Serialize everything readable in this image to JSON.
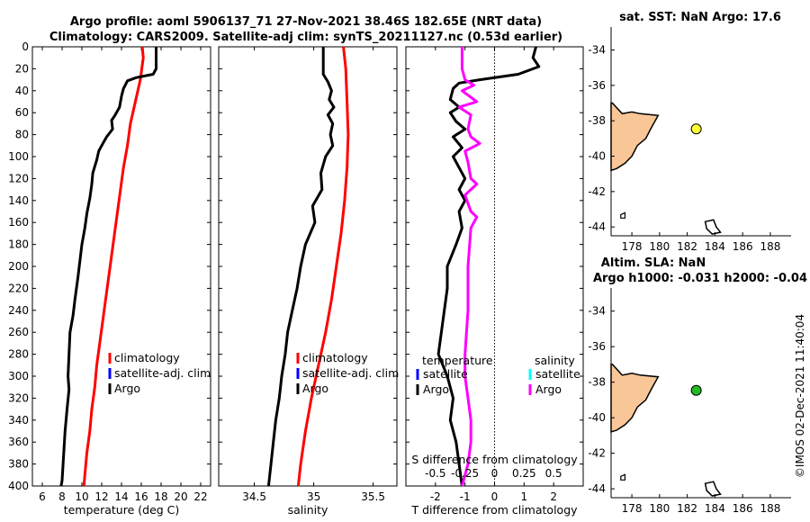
{
  "titles": {
    "line1": "Argo profile: aoml 5906137_71 27-Nov-2021 38.46S 182.65E (NRT data)",
    "line2": "Climatology: CARS2009. Satellite-adj clim: synTS_20211127.nc (0.53d earlier)"
  },
  "footer": "©IMOS 02-Dec-2021 11:40:04",
  "colors": {
    "climatology": "#ff0000",
    "satellite": "#0000ff",
    "argo": "#000000",
    "sal_sat": "#00ffff",
    "sal_argo": "#ff00ff",
    "land": "#f9c797",
    "sst_dot": "#ffff33",
    "sla_dot": "#22bb22"
  },
  "chart_data": [
    {
      "id": "temperature",
      "type": "line",
      "xlabel": "temperature (deg C)",
      "ylim": [
        0,
        400
      ],
      "xlim": [
        5,
        23
      ],
      "xticks": [
        6,
        8,
        10,
        12,
        14,
        16,
        18,
        20,
        22
      ],
      "yticks": [
        0,
        20,
        40,
        60,
        80,
        100,
        120,
        140,
        160,
        180,
        200,
        220,
        240,
        260,
        280,
        300,
        320,
        340,
        360,
        380,
        400
      ],
      "legend": [
        "climatology",
        "satellite-adj. clim",
        "Argo"
      ],
      "series": [
        {
          "name": "climatology",
          "color": "#ff0000",
          "points": [
            [
              16.1,
              0
            ],
            [
              16.2,
              10
            ],
            [
              15.9,
              30
            ],
            [
              15.4,
              50
            ],
            [
              14.9,
              70
            ],
            [
              14.6,
              90
            ],
            [
              14.2,
              110
            ],
            [
              13.9,
              130
            ],
            [
              13.6,
              150
            ],
            [
              13.3,
              170
            ],
            [
              13.0,
              190
            ],
            [
              12.7,
              210
            ],
            [
              12.4,
              230
            ],
            [
              12.1,
              250
            ],
            [
              11.8,
              270
            ],
            [
              11.5,
              290
            ],
            [
              11.3,
              310
            ],
            [
              11.0,
              330
            ],
            [
              10.8,
              350
            ],
            [
              10.5,
              370
            ],
            [
              10.3,
              390
            ],
            [
              10.2,
              400
            ]
          ]
        },
        {
          "name": "Argo",
          "color": "#000000",
          "points": [
            [
              17.5,
              0
            ],
            [
              17.5,
              20
            ],
            [
              17.2,
              25
            ],
            [
              15.5,
              28
            ],
            [
              14.6,
              31
            ],
            [
              14.2,
              38
            ],
            [
              14.0,
              45
            ],
            [
              13.8,
              55
            ],
            [
              13.3,
              63
            ],
            [
              13.0,
              67
            ],
            [
              13.1,
              75
            ],
            [
              12.5,
              82
            ],
            [
              12.0,
              90
            ],
            [
              11.7,
              95
            ],
            [
              11.5,
              103
            ],
            [
              11.1,
              115
            ],
            [
              11.0,
              125
            ],
            [
              10.8,
              138
            ],
            [
              10.5,
              152
            ],
            [
              10.3,
              165
            ],
            [
              10.0,
              180
            ],
            [
              9.8,
              195
            ],
            [
              9.6,
              210
            ],
            [
              9.3,
              230
            ],
            [
              9.1,
              245
            ],
            [
              8.8,
              260
            ],
            [
              8.7,
              280
            ],
            [
              8.6,
              300
            ],
            [
              8.7,
              312
            ],
            [
              8.5,
              330
            ],
            [
              8.3,
              350
            ],
            [
              8.2,
              365
            ],
            [
              8.1,
              380
            ],
            [
              8.0,
              395
            ],
            [
              7.9,
              400
            ]
          ]
        }
      ]
    },
    {
      "id": "salinity",
      "type": "line",
      "xlabel": "salinity",
      "ylim": [
        0,
        400
      ],
      "xlim": [
        34.2,
        35.7
      ],
      "xticks": [
        34.5,
        35,
        35.5
      ],
      "legend": [
        "climatology",
        "satellite-adj. clim",
        "Argo"
      ],
      "series": [
        {
          "name": "climatology",
          "color": "#ff0000",
          "points": [
            [
              35.25,
              0
            ],
            [
              35.27,
              20
            ],
            [
              35.28,
              50
            ],
            [
              35.29,
              80
            ],
            [
              35.28,
              110
            ],
            [
              35.26,
              140
            ],
            [
              35.23,
              170
            ],
            [
              35.19,
              200
            ],
            [
              35.15,
              230
            ],
            [
              35.1,
              260
            ],
            [
              35.04,
              290
            ],
            [
              34.98,
              320
            ],
            [
              34.93,
              350
            ],
            [
              34.89,
              380
            ],
            [
              34.87,
              400
            ]
          ]
        },
        {
          "name": "Argo",
          "color": "#000000",
          "points": [
            [
              35.08,
              0
            ],
            [
              35.08,
              25
            ],
            [
              35.12,
              32
            ],
            [
              35.15,
              40
            ],
            [
              35.13,
              48
            ],
            [
              35.17,
              55
            ],
            [
              35.12,
              62
            ],
            [
              35.16,
              70
            ],
            [
              35.14,
              80
            ],
            [
              35.16,
              90
            ],
            [
              35.1,
              100
            ],
            [
              35.06,
              115
            ],
            [
              35.07,
              130
            ],
            [
              34.99,
              145
            ],
            [
              35.01,
              160
            ],
            [
              34.93,
              180
            ],
            [
              34.89,
              200
            ],
            [
              34.86,
              220
            ],
            [
              34.82,
              240
            ],
            [
              34.78,
              260
            ],
            [
              34.76,
              280
            ],
            [
              34.73,
              300
            ],
            [
              34.71,
              320
            ],
            [
              34.68,
              340
            ],
            [
              34.66,
              360
            ],
            [
              34.64,
              380
            ],
            [
              34.62,
              400
            ]
          ]
        }
      ]
    },
    {
      "id": "difference",
      "type": "line",
      "xlabel": "T difference from climatology",
      "xlabel2": "S difference from climatology",
      "ylim": [
        0,
        400
      ],
      "xlim": [
        -3,
        3
      ],
      "xticks": [
        -2,
        -1,
        0,
        1,
        2
      ],
      "xticks2": [
        "-0.5",
        "-0.25",
        "0",
        "0.25",
        "0.5"
      ],
      "legend_t": {
        "title": "temperature",
        "items": [
          "satellite",
          "Argo"
        ]
      },
      "legend_s": {
        "title": "salinity",
        "items": [
          "satellite",
          "Argo"
        ]
      },
      "series": [
        {
          "name": "T Argo",
          "color": "#000000",
          "points": [
            [
              1.4,
              0
            ],
            [
              1.3,
              10
            ],
            [
              1.5,
              18
            ],
            [
              0.8,
              25
            ],
            [
              -0.5,
              30
            ],
            [
              -1.2,
              33
            ],
            [
              -1.4,
              38
            ],
            [
              -1.5,
              48
            ],
            [
              -1.2,
              55
            ],
            [
              -1.5,
              60
            ],
            [
              -1.3,
              68
            ],
            [
              -1.0,
              75
            ],
            [
              -1.4,
              82
            ],
            [
              -1.1,
              92
            ],
            [
              -1.4,
              100
            ],
            [
              -1.2,
              110
            ],
            [
              -1.0,
              120
            ],
            [
              -1.2,
              130
            ],
            [
              -1.0,
              140
            ],
            [
              -1.2,
              150
            ],
            [
              -1.1,
              165
            ],
            [
              -1.3,
              180
            ],
            [
              -1.6,
              200
            ],
            [
              -1.6,
              220
            ],
            [
              -1.7,
              240
            ],
            [
              -1.8,
              260
            ],
            [
              -1.9,
              280
            ],
            [
              -1.6,
              300
            ],
            [
              -1.4,
              320
            ],
            [
              -1.5,
              340
            ],
            [
              -1.3,
              360
            ],
            [
              -1.2,
              380
            ],
            [
              -1.1,
              400
            ]
          ]
        },
        {
          "name": "S Argo",
          "color": "#ff00ff",
          "points": [
            [
              -1.1,
              0
            ],
            [
              -1.1,
              20
            ],
            [
              -1.0,
              30
            ],
            [
              -0.7,
              35
            ],
            [
              -1.1,
              40
            ],
            [
              -0.6,
              50
            ],
            [
              -1.2,
              55
            ],
            [
              -0.8,
              62
            ],
            [
              -0.9,
              75
            ],
            [
              -0.8,
              82
            ],
            [
              -0.5,
              88
            ],
            [
              -1.0,
              95
            ],
            [
              -0.9,
              105
            ],
            [
              -0.8,
              120
            ],
            [
              -0.6,
              125
            ],
            [
              -1.0,
              135
            ],
            [
              -0.8,
              150
            ],
            [
              -0.6,
              155
            ],
            [
              -0.8,
              165
            ],
            [
              -0.9,
              200
            ],
            [
              -0.9,
              240
            ],
            [
              -1.0,
              280
            ],
            [
              -1.0,
              300
            ],
            [
              -0.9,
              320
            ],
            [
              -0.8,
              340
            ],
            [
              -0.8,
              360
            ],
            [
              -0.9,
              380
            ],
            [
              -1.1,
              400
            ]
          ]
        }
      ]
    },
    {
      "id": "map_sst",
      "type": "scatter",
      "title": "sat. SST: NaN Argo: 17.6",
      "xlim": [
        176.5,
        189.5
      ],
      "ylim": [
        -44.5,
        -32.7
      ],
      "xticks": [
        178,
        180,
        182,
        184,
        186,
        188
      ],
      "yticks": [
        -34,
        -36,
        -38,
        -40,
        -42,
        -44
      ],
      "marker": {
        "lon": 182.65,
        "lat": -38.46,
        "color": "#ffff33"
      }
    },
    {
      "id": "map_sla",
      "type": "scatter",
      "title": "Altim. SLA: NaN",
      "title2": "Argo h1000: -0.031 h2000: -0.04",
      "xlim": [
        176.5,
        189.5
      ],
      "ylim": [
        -44.5,
        -32.7
      ],
      "xticks": [
        178,
        180,
        182,
        184,
        186,
        188
      ],
      "yticks": [
        -34,
        -36,
        -38,
        -40,
        -42,
        -44
      ],
      "marker": {
        "lon": 182.65,
        "lat": -38.46,
        "color": "#22bb22"
      }
    }
  ]
}
